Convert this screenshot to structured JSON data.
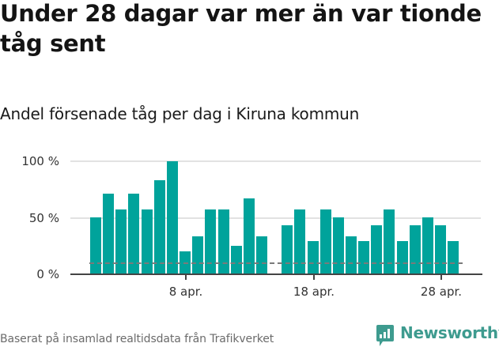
{
  "header": {
    "title": "Under 28 dagar var mer än var tionde tåg sent",
    "subtitle": "Andel försenade tåg per dag i Kiruna kommun"
  },
  "footer": {
    "source": "Baserat på insamlad realtidsdata från Trafikverket",
    "logo_text": "Newsworthy"
  },
  "colors": {
    "bar": "#00a39b",
    "reference_line": "#7a7a7a",
    "logo": "#3e9b8f"
  },
  "chart_data": {
    "type": "bar",
    "title": "Andel försenade tåg per dag i Kiruna kommun",
    "xlabel": "",
    "ylabel": "",
    "ylim": [
      0,
      100
    ],
    "y_ticks": [
      "0 %",
      "50 %",
      "100 %"
    ],
    "x_ticks": [
      "8 apr.",
      "18 apr.",
      "28 apr."
    ],
    "grid": true,
    "categories": [
      "1 apr.",
      "2 apr.",
      "3 apr.",
      "4 apr.",
      "5 apr.",
      "6 apr.",
      "7 apr.",
      "8 apr.",
      "9 apr.",
      "10 apr.",
      "11 apr.",
      "12 apr.",
      "13 apr.",
      "14 apr.",
      "15 apr.",
      "16 apr.",
      "17 apr.",
      "18 apr.",
      "19 apr.",
      "20 apr.",
      "21 apr.",
      "22 apr.",
      "23 apr.",
      "24 apr.",
      "25 apr.",
      "26 apr.",
      "27 apr.",
      "28 apr.",
      "29 apr."
    ],
    "values": [
      50,
      71,
      57,
      71,
      57,
      83,
      100,
      20,
      33,
      57,
      57,
      25,
      67,
      33,
      null,
      43,
      57,
      29,
      57,
      50,
      33,
      29,
      43,
      57,
      29,
      43,
      50,
      43,
      29
    ],
    "reference_line": {
      "value": 10,
      "style": "dashed",
      "label": ""
    },
    "unit": "%"
  }
}
